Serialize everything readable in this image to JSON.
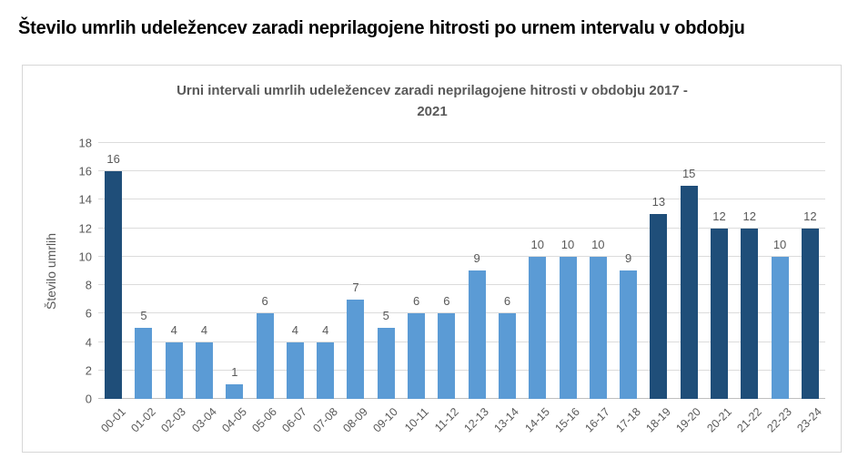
{
  "header": {
    "title": "Število umrlih udeležencev zaradi neprilagojene hitrosti po urnem intervalu v obdobju"
  },
  "chart": {
    "title_lines": [
      "Urni intervali umrlih udeležencev zaradi neprilagojene hitrosti v obdobju 2017 -",
      "2021"
    ]
  },
  "chart_data": {
    "type": "bar",
    "title": "Urni intervali umrlih udeležencev zaradi neprilagojene hitrosti v obdobju 2017 - 2021",
    "categories": [
      "00-01",
      "01-02",
      "02-03",
      "03-04",
      "04-05",
      "05-06",
      "06-07",
      "07-08",
      "08-09",
      "09-10",
      "10-11",
      "11-12",
      "12-13",
      "13-14",
      "14-15",
      "15-16",
      "16-17",
      "17-18",
      "18-19",
      "19-20",
      "20-21",
      "21-22",
      "22-23",
      "23-24"
    ],
    "values": [
      16,
      5,
      4,
      4,
      1,
      6,
      4,
      4,
      7,
      5,
      6,
      6,
      9,
      6,
      10,
      10,
      10,
      9,
      13,
      15,
      12,
      12,
      10,
      12
    ],
    "dark_indices": [
      0,
      18,
      19,
      20,
      21,
      23
    ],
    "xlabel": "",
    "ylabel": "Število umrlih",
    "ylim": [
      0,
      18
    ],
    "ytick_step": 2,
    "grid": "horizontal",
    "legend": "none",
    "colors": {
      "bar": "#5B9BD5",
      "bar_dark": "#1F4E79",
      "gridline": "#DCDCDC",
      "axis_line": "#BFBFBF",
      "tick_text": "#595959",
      "title_text": "#595959",
      "page_title_text": "#000000"
    }
  }
}
